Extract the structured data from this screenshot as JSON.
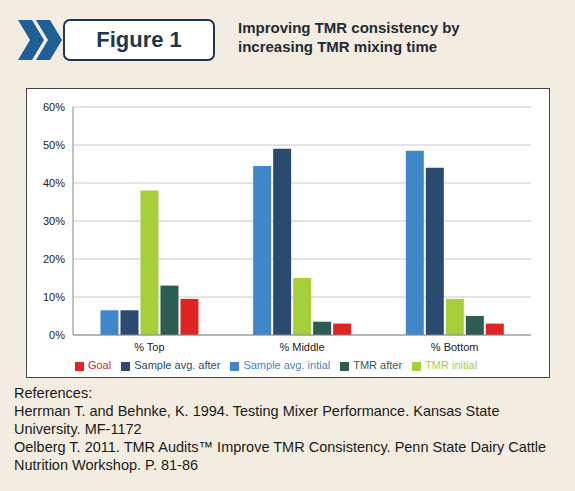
{
  "header": {
    "label": "Figure 1"
  },
  "chart_data": {
    "type": "bar",
    "title": "Improving TMR consistency by increasing TMR mixing time",
    "categories": [
      "% Top",
      "% Middle",
      "% Bottom"
    ],
    "series": [
      {
        "name": "Sample avg. intial",
        "color": "#3f87c9",
        "values": [
          6.5,
          44.5,
          48.5
        ]
      },
      {
        "name": "Sample avg. after",
        "color": "#2b4a6f",
        "values": [
          6.5,
          49,
          44
        ]
      },
      {
        "name": "TMR initial",
        "color": "#a6cf3a",
        "values": [
          38,
          15,
          9.5
        ]
      },
      {
        "name": "TMR after",
        "color": "#2c5c52",
        "values": [
          13,
          3.5,
          5
        ]
      },
      {
        "name": "Goal",
        "color": "#e02424",
        "values": [
          9.5,
          3,
          3
        ]
      }
    ],
    "ylim": [
      0,
      60
    ],
    "yticks": [
      {
        "value": 0,
        "label": "0%"
      },
      {
        "value": 10,
        "label": "10%"
      },
      {
        "value": 20,
        "label": "20%"
      },
      {
        "value": 30,
        "label": "30%"
      },
      {
        "value": 40,
        "label": "40%"
      },
      {
        "value": 50,
        "label": "50%"
      },
      {
        "value": 60,
        "label": "60%"
      }
    ],
    "grid": true,
    "legend": "bottom"
  },
  "references": {
    "heading": "References:",
    "items": [
      "Herrman T. and Behnke, K. 1994. Testing Mixer Performance. Kansas State University. MF-1172",
      "Oelberg T. 2011. TMR Audits™ Improve TMR Consistency. Penn State Dairy Cattle Nutrition Workshop. P. 81-86"
    ]
  }
}
